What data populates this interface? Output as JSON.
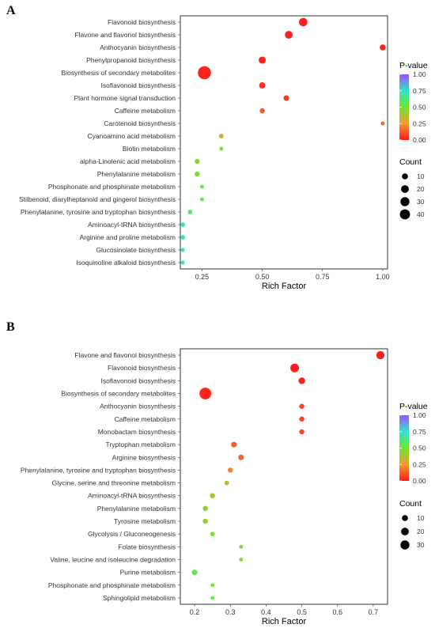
{
  "chart_data": [
    {
      "type": "scatter",
      "panel_label": "A",
      "xlabel": "Rich Factor",
      "xlim": [
        0.16,
        1.02
      ],
      "xticks": [
        "0.25",
        "0.50",
        "0.75",
        "1.00"
      ],
      "xtick_values": [
        0.25,
        0.5,
        0.75,
        1.0
      ],
      "grid": false,
      "color_legend": {
        "title": "P-value",
        "ticks": [
          "1.00",
          "0.75",
          "0.50",
          "0.25",
          "0.00"
        ],
        "tick_values": [
          1.0,
          0.75,
          0.5,
          0.25,
          0.0
        ]
      },
      "size_legend": {
        "title": "Count",
        "ticks": [
          "10",
          "20",
          "30",
          "40"
        ],
        "tick_values": [
          10,
          20,
          30,
          40
        ]
      },
      "points": [
        {
          "pathway": "Flavonoid biosynthesis",
          "rich_factor": 0.67,
          "count": 14,
          "pvalue": 0.01
        },
        {
          "pathway": "Flavone and flavonol biosynthesis",
          "rich_factor": 0.61,
          "count": 11,
          "pvalue": 0.01
        },
        {
          "pathway": "Anthocyanin biosynthesis",
          "rich_factor": 1.0,
          "count": 5,
          "pvalue": 0.02
        },
        {
          "pathway": "Phenylpropanoid biosynthesis",
          "rich_factor": 0.5,
          "count": 9,
          "pvalue": 0.02
        },
        {
          "pathway": "Biosynthesis of secondary metabolites",
          "rich_factor": 0.26,
          "count": 43,
          "pvalue": 0.02
        },
        {
          "pathway": "Isoflavonoid biosynthesis",
          "rich_factor": 0.5,
          "count": 6,
          "pvalue": 0.04
        },
        {
          "pathway": "Plant hormone signal transduction",
          "rich_factor": 0.6,
          "count": 4,
          "pvalue": 0.05
        },
        {
          "pathway": "Caffeine metabolism",
          "rich_factor": 0.5,
          "count": 3,
          "pvalue": 0.12
        },
        {
          "pathway": "Carotenoid biosynthesis",
          "rich_factor": 1.0,
          "count": 1,
          "pvalue": 0.15
        },
        {
          "pathway": "Cyanoamino acid metabolism",
          "rich_factor": 0.33,
          "count": 2,
          "pvalue": 0.3
        },
        {
          "pathway": "Biotin metabolism",
          "rich_factor": 0.33,
          "count": 1,
          "pvalue": 0.45
        },
        {
          "pathway": "alpha-Linolenic acid metabolism",
          "rich_factor": 0.23,
          "count": 3,
          "pvalue": 0.45
        },
        {
          "pathway": "Phenylalanine metabolism",
          "rich_factor": 0.23,
          "count": 3,
          "pvalue": 0.47
        },
        {
          "pathway": "Phosphonate and phosphinate metabolism",
          "rich_factor": 0.25,
          "count": 1,
          "pvalue": 0.52
        },
        {
          "pathway": "Stilbenoid, diarylheptanoid and gingerol biosynthesis",
          "rich_factor": 0.25,
          "count": 1,
          "pvalue": 0.55
        },
        {
          "pathway": "Phenylalanine, tyrosine and tryptophan biosynthesis",
          "rich_factor": 0.2,
          "count": 2,
          "pvalue": 0.62
        },
        {
          "pathway": "Aminoacyl-tRNA biosynthesis",
          "rich_factor": 0.17,
          "count": 2,
          "pvalue": 0.72
        },
        {
          "pathway": "Arginine and proline metabolism",
          "rich_factor": 0.17,
          "count": 2,
          "pvalue": 0.72
        },
        {
          "pathway": "Glucosinolate biosynthesis",
          "rich_factor": 0.17,
          "count": 1,
          "pvalue": 0.74
        },
        {
          "pathway": "Isoquinoline alkaloid biosynthesis",
          "rich_factor": 0.17,
          "count": 1,
          "pvalue": 0.74
        }
      ]
    },
    {
      "type": "scatter",
      "panel_label": "B",
      "xlabel": "Rich Factor",
      "xlim": [
        0.16,
        0.74
      ],
      "xticks": [
        "0.2",
        "0.3",
        "0.4",
        "0.5",
        "0.6",
        "0.7"
      ],
      "xtick_values": [
        0.2,
        0.3,
        0.4,
        0.5,
        0.6,
        0.7
      ],
      "grid": false,
      "color_legend": {
        "title": "P-value",
        "ticks": [
          "1.00",
          "0.75",
          "0.50",
          "0.25",
          "0.00"
        ],
        "tick_values": [
          1.0,
          0.75,
          0.5,
          0.25,
          0.0
        ]
      },
      "size_legend": {
        "title": "Count",
        "ticks": [
          "10",
          "20",
          "30"
        ],
        "tick_values": [
          10,
          20,
          30
        ]
      },
      "points": [
        {
          "pathway": "Flavone and flavonol biosynthesis",
          "rich_factor": 0.72,
          "count": 13,
          "pvalue": 0.01
        },
        {
          "pathway": "Flavonoid biosynthesis",
          "rich_factor": 0.48,
          "count": 15,
          "pvalue": 0.01
        },
        {
          "pathway": "Isoflavonoid biosynthesis",
          "rich_factor": 0.5,
          "count": 7,
          "pvalue": 0.02
        },
        {
          "pathway": "Biosynthesis of secondary metabolites",
          "rich_factor": 0.23,
          "count": 33,
          "pvalue": 0.02
        },
        {
          "pathway": "Anthocyanin biosynthesis",
          "rich_factor": 0.5,
          "count": 3,
          "pvalue": 0.08
        },
        {
          "pathway": "Caffeine metabolism",
          "rich_factor": 0.5,
          "count": 3,
          "pvalue": 0.08
        },
        {
          "pathway": "Monobactam biosynthesis",
          "rich_factor": 0.5,
          "count": 3,
          "pvalue": 0.08
        },
        {
          "pathway": "Tryptophan metabolism",
          "rich_factor": 0.31,
          "count": 4,
          "pvalue": 0.13
        },
        {
          "pathway": "Arginine biosynthesis",
          "rich_factor": 0.33,
          "count": 4,
          "pvalue": 0.15
        },
        {
          "pathway": "Phenylalanine, tyrosine and tryptophan biosynthesis",
          "rich_factor": 0.3,
          "count": 3,
          "pvalue": 0.2
        },
        {
          "pathway": "Glycine, serine and threonine metabolism",
          "rich_factor": 0.29,
          "count": 2,
          "pvalue": 0.35
        },
        {
          "pathway": "Aminoacyl-tRNA biosynthesis",
          "rich_factor": 0.25,
          "count": 3,
          "pvalue": 0.4
        },
        {
          "pathway": "Phenylalanine metabolism",
          "rich_factor": 0.23,
          "count": 3,
          "pvalue": 0.45
        },
        {
          "pathway": "Tyrosine metabolism",
          "rich_factor": 0.23,
          "count": 3,
          "pvalue": 0.45
        },
        {
          "pathway": "Glycolysis / Gluconeogenesis",
          "rich_factor": 0.25,
          "count": 2,
          "pvalue": 0.48
        },
        {
          "pathway": "Folate biosynthesis",
          "rich_factor": 0.33,
          "count": 1,
          "pvalue": 0.45
        },
        {
          "pathway": "Valine, leucine and isoleucine degradation",
          "rich_factor": 0.33,
          "count": 1,
          "pvalue": 0.45
        },
        {
          "pathway": "Purine metabolism",
          "rich_factor": 0.2,
          "count": 4,
          "pvalue": 0.55
        },
        {
          "pathway": "Phosphonate and phosphinate metabolism",
          "rich_factor": 0.25,
          "count": 1,
          "pvalue": 0.52
        },
        {
          "pathway": "Sphingolipid metabolism",
          "rich_factor": 0.25,
          "count": 1,
          "pvalue": 0.55
        }
      ]
    }
  ]
}
